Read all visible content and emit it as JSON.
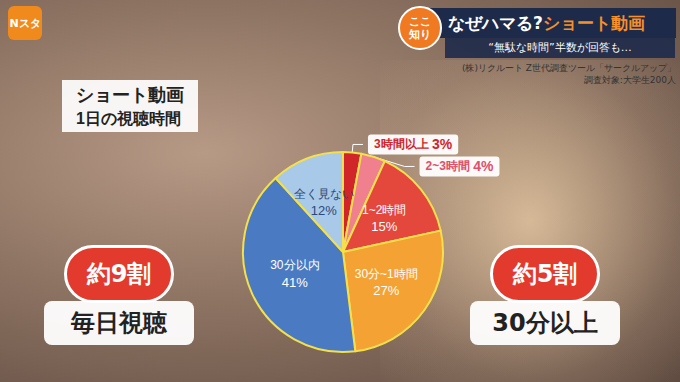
{
  "header": {
    "logo": "Nスタ",
    "badge": "ここ知り",
    "title": [
      "なぜハマる?",
      "ショート動画"
    ],
    "subtitle": "“無駄な時間”半数が回答も…"
  },
  "source": [
    "(株)リクルート Z世代調査ツール「サークルアップ」",
    "調査対象:大学生200人"
  ],
  "callouts": [
    {
      "big": "約9割",
      "small": "毎日視聴"
    },
    {
      "big": "約5割",
      "small": "30分以上"
    }
  ],
  "chart_data": {
    "type": "pie",
    "title": "ショート動画",
    "subtitle": "1日の視聴時間",
    "categories": [
      "3時間以上",
      "2~3時間",
      "1~2時間",
      "30分~1時間",
      "30分以内",
      "全く見ない"
    ],
    "values": [
      3,
      4,
      15,
      27,
      41,
      12
    ],
    "value_labels": [
      "3%",
      "4%",
      "15%",
      "27%",
      "41%",
      "12%"
    ],
    "colors": [
      "#d0262a",
      "#f0808e",
      "#e4473c",
      "#f4a233",
      "#4a7bc2",
      "#a9c9e8"
    ],
    "data_labels": true
  }
}
